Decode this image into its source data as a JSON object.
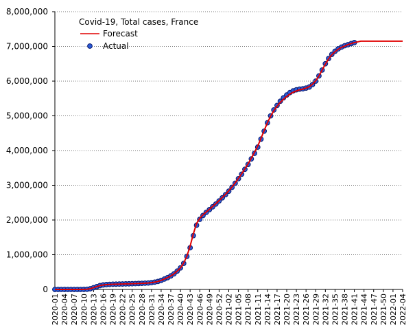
{
  "chart_data": {
    "type": "line",
    "title": "Covid-19, Total cases, France",
    "categories": [
      "2020-01",
      null,
      null,
      "2020-04",
      null,
      null,
      "2020-07",
      null,
      null,
      "2020-10",
      null,
      null,
      "2020-13",
      null,
      null,
      "2020-16",
      null,
      null,
      "2020-19",
      null,
      null,
      "2020-22",
      null,
      null,
      "2020-25",
      null,
      null,
      "2020-28",
      null,
      null,
      "2020-31",
      null,
      null,
      "2020-34",
      null,
      null,
      "2020-37",
      null,
      null,
      "2020-40",
      null,
      null,
      "2020-43",
      null,
      null,
      "2020-46",
      null,
      null,
      "2020-49",
      null,
      null,
      "2020-52",
      null,
      null,
      "2021-02",
      null,
      null,
      "2021-05",
      null,
      null,
      "2021-08",
      null,
      null,
      "2021-11",
      null,
      null,
      "2021-14",
      null,
      null,
      "2021-17",
      null,
      null,
      "2021-20",
      null,
      null,
      "2021-23",
      null,
      null,
      "2021-26",
      null,
      null,
      "2021-29",
      null,
      null,
      "2021-32",
      null,
      null,
      "2021-35",
      null,
      null,
      "2021-38",
      null,
      null,
      "2021-41",
      null,
      null,
      "2021-44",
      null,
      null,
      "2021-47",
      null,
      null,
      "2021-50",
      null,
      null,
      "2022-01",
      null,
      null,
      "2022-04"
    ],
    "series": [
      {
        "name": "Forecast",
        "color": "#e00000",
        "style": "line",
        "values": [
          0,
          0,
          0,
          0,
          0,
          0,
          0,
          0,
          0,
          2000,
          6000,
          20000,
          50000,
          80000,
          110000,
          128000,
          138000,
          144000,
          148000,
          151000,
          154000,
          157000,
          160000,
          162000,
          165000,
          168000,
          172000,
          176000,
          180000,
          186000,
          195000,
          210000,
          230000,
          260000,
          300000,
          340000,
          390000,
          450000,
          530000,
          620000,
          760000,
          960000,
          1250000,
          1600000,
          1900000,
          2050000,
          2150000,
          2230000,
          2310000,
          2390000,
          2470000,
          2560000,
          2650000,
          2740000,
          2840000,
          2950000,
          3070000,
          3200000,
          3330000,
          3470000,
          3620000,
          3780000,
          3950000,
          4130000,
          4350000,
          4580000,
          4800000,
          4990000,
          5150000,
          5280000,
          5390000,
          5480000,
          5560000,
          5630000,
          5680000,
          5720000,
          5750000,
          5770000,
          5800000,
          5840000,
          5910000,
          6010000,
          6150000,
          6320000,
          6490000,
          6640000,
          6760000,
          6850000,
          6920000,
          6970000,
          7010000,
          7050000,
          7080000,
          7110000,
          7130000,
          7150000,
          7150000,
          7150000,
          7150000,
          7150000,
          7150000,
          7150000,
          7150000,
          7150000,
          7150000,
          7150000,
          7150000,
          7150000,
          7150000
        ]
      },
      {
        "name": "Actual",
        "color": "#2a5bd7",
        "style": "marker",
        "values": [
          0,
          0,
          0,
          0,
          0,
          0,
          0,
          0,
          0,
          2000,
          5000,
          20000,
          50000,
          80000,
          110000,
          130000,
          140000,
          145000,
          150000,
          152000,
          155000,
          157000,
          160000,
          162000,
          165000,
          168000,
          172000,
          176000,
          180000,
          186000,
          195000,
          210000,
          230000,
          260000,
          300000,
          340000,
          390000,
          450000,
          530000,
          620000,
          750000,
          950000,
          1200000,
          1550000,
          1850000,
          2020000,
          2130000,
          2220000,
          2300000,
          2380000,
          2460000,
          2550000,
          2640000,
          2730000,
          2830000,
          2940000,
          3060000,
          3190000,
          3320000,
          3460000,
          3600000,
          3760000,
          3920000,
          4100000,
          4330000,
          4560000,
          4800000,
          5000000,
          5170000,
          5300000,
          5420000,
          5520000,
          5600000,
          5670000,
          5720000,
          5750000,
          5770000,
          5780000,
          5800000,
          5830000,
          5900000,
          6000000,
          6150000,
          6320000,
          6500000,
          6650000,
          6770000,
          6860000,
          6930000,
          6980000,
          7020000,
          7050000,
          7080000,
          7110000,
          null,
          null,
          null,
          null,
          null,
          null,
          null,
          null,
          null,
          null,
          null,
          null,
          null,
          null,
          null
        ]
      }
    ],
    "ylim": [
      0,
      8000000
    ],
    "yticks": [
      0,
      {
        "value": 1000000,
        "label": "1,000,000"
      },
      {
        "value": 2000000,
        "label": "2,000,000"
      },
      {
        "value": 3000000,
        "label": "3,000,000"
      },
      {
        "value": 4000000,
        "label": "4,000,000"
      },
      {
        "value": 5000000,
        "label": "5,000,000"
      },
      {
        "value": 6000000,
        "label": "6,000,000"
      },
      {
        "value": 7000000,
        "label": "7,000,000"
      },
      {
        "value": 8000000,
        "label": "8,000,000"
      }
    ],
    "grid": true,
    "legend": "upper left"
  }
}
